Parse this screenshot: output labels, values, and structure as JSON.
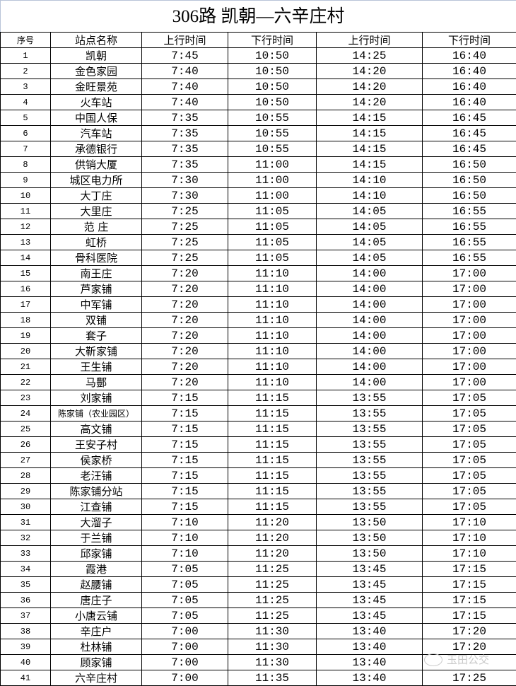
{
  "title": "306路  凯朝—六辛庄村",
  "headers": [
    "序号",
    "站点名称",
    "上行时间",
    "下行时间",
    "上行时间",
    "下行时间"
  ],
  "rows": [
    [
      "1",
      "凯朝",
      "7:45",
      "10:50",
      "14:25",
      "16:40"
    ],
    [
      "2",
      "金色家园",
      "7:40",
      "10:50",
      "14:20",
      "16:40"
    ],
    [
      "3",
      "金旺景苑",
      "7:40",
      "10:50",
      "14:20",
      "16:40"
    ],
    [
      "4",
      "火车站",
      "7:40",
      "10:50",
      "14:20",
      "16:40"
    ],
    [
      "5",
      "中国人保",
      "7:35",
      "10:55",
      "14:15",
      "16:45"
    ],
    [
      "6",
      "汽车站",
      "7:35",
      "10:55",
      "14:15",
      "16:45"
    ],
    [
      "7",
      "承德银行",
      "7:35",
      "10:55",
      "14:15",
      "16:45"
    ],
    [
      "8",
      "供销大厦",
      "7:35",
      "11:00",
      "14:15",
      "16:50"
    ],
    [
      "9",
      "城区电力所",
      "7:30",
      "11:00",
      "14:10",
      "16:50"
    ],
    [
      "10",
      "大丁庄",
      "7:30",
      "11:00",
      "14:10",
      "16:50"
    ],
    [
      "11",
      "大里庄",
      "7:25",
      "11:05",
      "14:05",
      "16:55"
    ],
    [
      "12",
      "范 庄",
      "7:25",
      "11:05",
      "14:05",
      "16:55"
    ],
    [
      "13",
      "虹桥",
      "7:25",
      "11:05",
      "14:05",
      "16:55"
    ],
    [
      "14",
      "骨科医院",
      "7:25",
      "11:05",
      "14:05",
      "16:55"
    ],
    [
      "15",
      "南王庄",
      "7:20",
      "11:10",
      "14:00",
      "17:00"
    ],
    [
      "16",
      "芦家铺",
      "7:20",
      "11:10",
      "14:00",
      "17:00"
    ],
    [
      "17",
      "中军铺",
      "7:20",
      "11:10",
      "14:00",
      "17:00"
    ],
    [
      "18",
      "双铺",
      "7:20",
      "11:10",
      "14:00",
      "17:00"
    ],
    [
      "19",
      "套子",
      "7:20",
      "11:10",
      "14:00",
      "17:00"
    ],
    [
      "20",
      "大靳家铺",
      "7:20",
      "11:10",
      "14:00",
      "17:00"
    ],
    [
      "21",
      "王生铺",
      "7:20",
      "11:10",
      "14:00",
      "17:00"
    ],
    [
      "22",
      "马酆",
      "7:20",
      "11:10",
      "14:00",
      "17:00"
    ],
    [
      "23",
      "刘家铺",
      "7:15",
      "11:15",
      "13:55",
      "17:05"
    ],
    [
      "24",
      "陈家铺（农业园区）",
      "7:15",
      "11:15",
      "13:55",
      "17:05"
    ],
    [
      "25",
      "高文铺",
      "7:15",
      "11:15",
      "13:55",
      "17:05"
    ],
    [
      "26",
      "王安子村",
      "7:15",
      "11:15",
      "13:55",
      "17:05"
    ],
    [
      "27",
      "侯家桥",
      "7:15",
      "11:15",
      "13:55",
      "17:05"
    ],
    [
      "28",
      "老汪铺",
      "7:15",
      "11:15",
      "13:55",
      "17:05"
    ],
    [
      "29",
      "陈家铺分站",
      "7:15",
      "11:15",
      "13:55",
      "17:05"
    ],
    [
      "30",
      "江查铺",
      "7:15",
      "11:15",
      "13:55",
      "17:05"
    ],
    [
      "31",
      "大溜子",
      "7:10",
      "11:20",
      "13:50",
      "17:10"
    ],
    [
      "32",
      "于兰铺",
      "7:10",
      "11:20",
      "13:50",
      "17:10"
    ],
    [
      "33",
      "邱家铺",
      "7:10",
      "11:20",
      "13:50",
      "17:10"
    ],
    [
      "34",
      "霞港",
      "7:05",
      "11:25",
      "13:45",
      "17:15"
    ],
    [
      "35",
      "赵腰铺",
      "7:05",
      "11:25",
      "13:45",
      "17:15"
    ],
    [
      "36",
      "唐庄子",
      "7:05",
      "11:25",
      "13:45",
      "17:15"
    ],
    [
      "37",
      "小唐云铺",
      "7:05",
      "11:25",
      "13:45",
      "17:15"
    ],
    [
      "38",
      "辛庄户",
      "7:00",
      "11:30",
      "13:40",
      "17:20"
    ],
    [
      "39",
      "杜林铺",
      "7:00",
      "11:30",
      "13:40",
      "17:20"
    ],
    [
      "40",
      "顾家铺",
      "7:00",
      "11:30",
      "13:40",
      ""
    ],
    [
      "41",
      "六辛庄村",
      "7:00",
      "11:35",
      "13:40",
      "17:25"
    ]
  ],
  "watermark": {
    "text": "玉田公交",
    "icon": "wechat-icon"
  }
}
